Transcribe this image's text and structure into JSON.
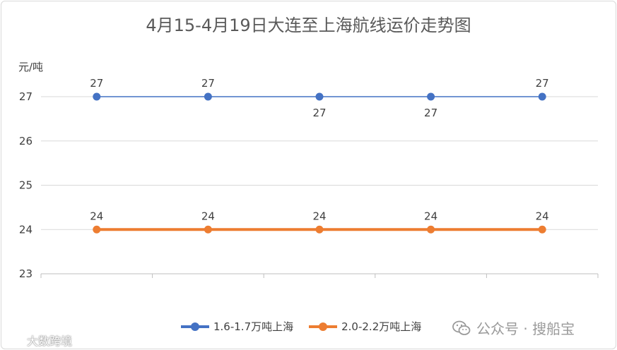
{
  "chart_data": {
    "type": "line",
    "title": "4月15-4月19日大连至上海航线运价走势图",
    "ylabel": "元/吨",
    "xlabel": "",
    "categories": [
      "",
      "",
      "",
      "",
      ""
    ],
    "ylim": [
      23,
      27
    ],
    "yticks": [
      23,
      24,
      25,
      26,
      27
    ],
    "grid": true,
    "legend_position": "bottom",
    "series": [
      {
        "name": "1.6-1.7万吨上海",
        "color": "#4472c4",
        "values": [
          27,
          27,
          27,
          27,
          27
        ],
        "labels": [
          "27",
          "27",
          "27",
          "27",
          "27"
        ],
        "label_side": [
          "above",
          "above",
          "below",
          "below",
          "above"
        ]
      },
      {
        "name": "2.0-2.2万吨上海",
        "color": "#ed7d31",
        "values": [
          24,
          24,
          24,
          24,
          24
        ],
        "labels": [
          "24",
          "24",
          "24",
          "24",
          "24"
        ],
        "label_side": [
          "above",
          "above",
          "above",
          "above",
          "above"
        ]
      }
    ]
  },
  "watermark": {
    "text": "公众号 · 搜船宝",
    "icon": "wechat-icon"
  },
  "corner_mark": {
    "text": "大数跨境",
    "icon": "logo-icon"
  }
}
